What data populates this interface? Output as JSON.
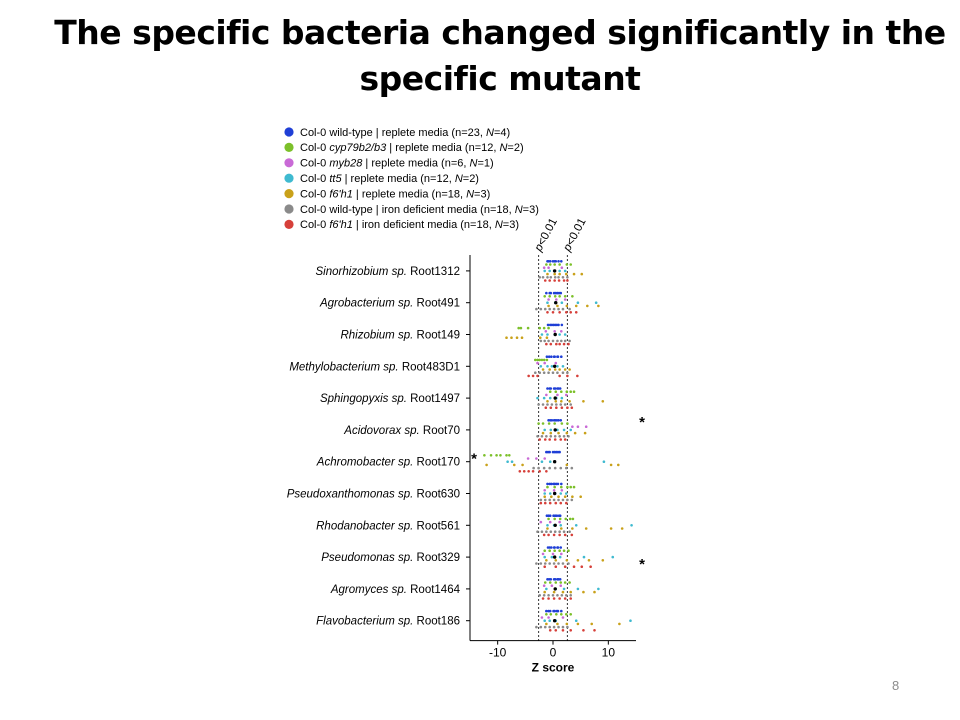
{
  "slide": {
    "title_line1": "The specific bacteria changed significantly in the",
    "title_line2": "specific mutant",
    "page_number": "8"
  },
  "chart_data": {
    "type": "scatter",
    "xlabel": "Z score",
    "xlim": [
      -15,
      15
    ],
    "xticks": [
      -10,
      0,
      10
    ],
    "threshold_lines": [
      {
        "x": -2.6,
        "label": "p<0.01"
      },
      {
        "x": 2.6,
        "label": "p<0.01"
      }
    ],
    "legend": {
      "position": "top",
      "entries": [
        {
          "parts": [
            [
              "Col-0 wild-type | replete media (n=23, ",
              false
            ],
            [
              "N",
              true
            ],
            [
              "=4)",
              false
            ]
          ],
          "color": "#1f3fd6"
        },
        {
          "parts": [
            [
              "Col-0 ",
              false
            ],
            [
              "cyp79b2/b3",
              true
            ],
            [
              " | replete media (n=12, ",
              false
            ],
            [
              "N",
              true
            ],
            [
              "=2)",
              false
            ]
          ],
          "color": "#7cc02a"
        },
        {
          "parts": [
            [
              "Col-0 ",
              false
            ],
            [
              "myb28",
              true
            ],
            [
              " | replete media (n=6, ",
              false
            ],
            [
              "N",
              true
            ],
            [
              "=1)",
              false
            ]
          ],
          "color": "#c96ad6"
        },
        {
          "parts": [
            [
              "Col-0 ",
              false
            ],
            [
              "tt5",
              true
            ],
            [
              " | replete media (n=12, ",
              false
            ],
            [
              "N",
              true
            ],
            [
              "=2)",
              false
            ]
          ],
          "color": "#3fbad0"
        },
        {
          "parts": [
            [
              "Col-0 ",
              false
            ],
            [
              "f6'h1",
              true
            ],
            [
              " | replete media (n=18, ",
              false
            ],
            [
              "N",
              true
            ],
            [
              "=3)",
              false
            ]
          ],
          "color": "#c9a11a"
        },
        {
          "parts": [
            [
              "Col-0 wild-type | iron deficient media (n=18, ",
              false
            ],
            [
              "N",
              true
            ],
            [
              "=3)",
              false
            ]
          ],
          "color": "#8a8a8a"
        },
        {
          "parts": [
            [
              "Col-0 ",
              false
            ],
            [
              "f6'h1",
              true
            ],
            [
              " | iron deficient media (n=18, ",
              false
            ],
            [
              "N",
              true
            ],
            [
              "=3)",
              false
            ]
          ],
          "color": "#d6403a"
        }
      ]
    },
    "categories": [
      {
        "genus": "Sinorhizobium sp.",
        "strain": "Root1312",
        "significant": false
      },
      {
        "genus": "Agrobacterium sp.",
        "strain": "Root491",
        "significant": false
      },
      {
        "genus": "Rhizobium sp.",
        "strain": "Root149",
        "significant": false
      },
      {
        "genus": "Methylobacterium sp.",
        "strain": "Root483D1",
        "significant": false
      },
      {
        "genus": "Sphingopyxis sp.",
        "strain": "Root1497",
        "significant": false
      },
      {
        "genus": "Acidovorax sp.",
        "strain": "Root70",
        "significant": true
      },
      {
        "genus": "Achromobacter sp.",
        "strain": "Root170",
        "significant": true
      },
      {
        "genus": "Pseudoxanthomonas sp.",
        "strain": "Root630",
        "significant": false
      },
      {
        "genus": "Rhodanobacter sp.",
        "strain": "Root561",
        "significant": false
      },
      {
        "genus": "Pseudomonas sp.",
        "strain": "Root329",
        "significant": true
      },
      {
        "genus": "Agromyces sp.",
        "strain": "Root1464",
        "significant": false
      },
      {
        "genus": "Flavobacterium sp.",
        "strain": "Root186",
        "significant": false
      }
    ],
    "significance_marker": "*",
    "series": [
      {
        "name": "Col-0 wild-type | replete media",
        "values": [
          [
            -1,
            -0.5,
            0,
            0.5,
            1,
            1.5,
            -0.8,
            0.3
          ],
          [
            -1.2,
            -0.4,
            0.2,
            0.8,
            1.4,
            -0.6,
            0.5,
            1.1
          ],
          [
            -0.9,
            -0.2,
            0.4,
            1,
            1.6,
            -0.5,
            0.1,
            0.7
          ],
          [
            -1.1,
            -0.3,
            0.3,
            0.9,
            1.5,
            -0.7,
            0.2,
            0.8
          ],
          [
            -1,
            -0.4,
            0.2,
            0.8,
            1.3,
            -0.6,
            0.4,
            1
          ],
          [
            -0.8,
            -0.2,
            0.4,
            1,
            1.4,
            -0.5,
            0.2,
            0.7
          ],
          [
            -1.2,
            -0.6,
            0,
            0.6,
            1.2,
            -0.9,
            0.3,
            0.9
          ],
          [
            -1,
            -0.3,
            0.3,
            0.9,
            1.5,
            -0.6,
            0.1,
            0.6
          ],
          [
            -1.1,
            -0.5,
            0.1,
            0.7,
            1.3,
            -0.8,
            0.4,
            1.1
          ],
          [
            -0.9,
            -0.3,
            0.3,
            0.9,
            1.4,
            -0.6,
            0.2,
            0.8
          ],
          [
            -1,
            -0.4,
            0.2,
            0.8,
            1.3,
            -0.7,
            0.4,
            1
          ],
          [
            -1.2,
            -0.5,
            0.1,
            0.7,
            1.5,
            -0.8,
            0.3,
            0.9
          ]
        ]
      },
      {
        "name": "Col-0 cyp79b2/b3 | replete media",
        "values": [
          [
            -1.2,
            -0.5,
            0.3,
            1.2,
            2.5,
            3.2
          ],
          [
            -1.5,
            -0.6,
            0.4,
            1.2,
            2.2,
            3.5
          ],
          [
            -6.2,
            -5.8,
            -4.5,
            -2.4,
            -1.6,
            -0.8
          ],
          [
            -3.2,
            -2.8,
            -2.4,
            -2,
            -1.6,
            -1.1
          ],
          [
            -0.5,
            0.5,
            1.5,
            2.5,
            3.2,
            3.8
          ],
          [
            -2.6,
            -1.8,
            -0.7,
            0.3,
            1.6,
            2.6
          ],
          [
            -12.4,
            -11.2,
            -10.2,
            -9.5,
            -8.4,
            -7.9
          ],
          [
            -1,
            0.3,
            1.5,
            2.6,
            3.2,
            3.8
          ],
          [
            -0.8,
            0.3,
            1.3,
            2.3,
            3.1,
            3.6
          ],
          [
            -1.5,
            -0.6,
            0.3,
            1.2,
            2,
            2.8
          ],
          [
            -1.4,
            -0.5,
            0.5,
            1.4,
            2.2,
            3
          ],
          [
            -1.2,
            -0.4,
            0.6,
            1.5,
            2.4,
            3.2
          ]
        ]
      },
      {
        "name": "Col-0 myb28 | replete media",
        "values": [
          [
            -1.6,
            -0.8,
            1.6
          ],
          [
            -0.8,
            0.6,
            2.2
          ],
          [
            -1.3,
            0.3,
            1.5
          ],
          [
            -2.8,
            -1.5,
            0.5
          ],
          [
            -1.2,
            0.8,
            2.4
          ],
          [
            3.5,
            4.5,
            6
          ],
          [
            -4.5,
            -3,
            -1.5
          ],
          [
            -1.5,
            0.2,
            1.6
          ],
          [
            -2.2,
            -0.5,
            1.2
          ],
          [
            -1.8,
            0,
            1.5
          ],
          [
            -1.6,
            -0.2,
            1.4
          ],
          [
            -2,
            -0.8,
            1.8
          ]
        ]
      },
      {
        "name": "Col-0 tt5 | replete media",
        "values": [
          [
            -1.5,
            -0.6,
            0.2,
            1.2,
            2.2
          ],
          [
            -1,
            0.4,
            1.6,
            4.5,
            7.8
          ],
          [
            -2,
            -1,
            0.3,
            1.2,
            2.2
          ],
          [
            -2.2,
            -1,
            -0.2,
            0.8,
            1.8
          ],
          [
            -2.8,
            -1.6,
            -0.5,
            0.6,
            1.6
          ],
          [
            -1.5,
            -0.4,
            0.8,
            2,
            3.2
          ],
          [
            -8.2,
            -7.4,
            -2,
            -0.5,
            9.2
          ],
          [
            -1.5,
            -0.5,
            0.4,
            1.4,
            2.4
          ],
          [
            -1,
            0.2,
            1.4,
            4.2,
            14.2
          ],
          [
            -1.5,
            -0.2,
            1.3,
            5.6,
            10.8
          ],
          [
            -1.2,
            0.5,
            2,
            4.5,
            8.2
          ],
          [
            -1.5,
            -0.6,
            0.5,
            4.2,
            14
          ]
        ]
      },
      {
        "name": "Col-0 f6'h1 | replete media",
        "values": [
          [
            -1,
            0.3,
            1.2,
            2.4,
            3.8,
            5.2
          ],
          [
            -0.8,
            0.8,
            2.5,
            4.2,
            6.2,
            8.2
          ],
          [
            -8.4,
            -7.5,
            -6.5,
            -5.6,
            -2.3,
            -1.1
          ],
          [
            -1.8,
            -0.6,
            0.4,
            1.2,
            2.2,
            3
          ],
          [
            -1,
            0.5,
            1.5,
            3,
            5.5,
            9
          ],
          [
            -1.8,
            -0.4,
            1,
            2.5,
            4,
            5.8
          ],
          [
            -12,
            -7,
            -5.5,
            2.5,
            10.5,
            11.8
          ],
          [
            -1.5,
            -0.3,
            1,
            2.2,
            3.5,
            5
          ],
          [
            -1,
            1.5,
            3.5,
            6,
            10.5,
            12.5
          ],
          [
            -1.2,
            0.5,
            2.5,
            4.5,
            6.5,
            9
          ],
          [
            -1.5,
            0.2,
            1.8,
            3.2,
            5.5,
            7.5
          ],
          [
            -1.2,
            0.8,
            2.5,
            4.5,
            7,
            12
          ]
        ]
      },
      {
        "name": "Col-0 wild-type | iron deficient media",
        "values": [
          [
            -2.4,
            -1.8,
            -1,
            -0.4,
            0.4,
            1,
            1.8,
            2.6
          ],
          [
            -3,
            -2.2,
            -1.4,
            -0.6,
            0.2,
            1,
            1.8,
            3
          ],
          [
            -2.2,
            -1.5,
            -0.8,
            0,
            0.8,
            1.5,
            2.2,
            3
          ],
          [
            -3.2,
            -2.4,
            -1.6,
            -0.8,
            0,
            0.8,
            1.8,
            2.6
          ],
          [
            -2.6,
            -1.8,
            -1,
            -0.2,
            0.6,
            1.4,
            2.2,
            3.2
          ],
          [
            -2.8,
            -2,
            -1.2,
            -0.4,
            0.4,
            1.2,
            2,
            2.8
          ],
          [
            -3.5,
            -2.6,
            -1.6,
            -0.6,
            0.4,
            1.4,
            2.4,
            3.4
          ],
          [
            -2.2,
            -1.4,
            -0.6,
            0.2,
            1,
            1.8,
            2.6,
            3.4
          ],
          [
            -2.8,
            -2,
            -1.2,
            -0.4,
            0.4,
            1.2,
            2,
            3
          ],
          [
            -3,
            -2.2,
            -1.4,
            -0.6,
            0.2,
            1,
            1.8,
            2.8
          ],
          [
            -2.4,
            -1.6,
            -0.8,
            0,
            0.8,
            1.6,
            2.4,
            3.2
          ],
          [
            -3,
            -2.2,
            -1.4,
            -0.6,
            0.2,
            1,
            1.8,
            2.6
          ]
        ]
      },
      {
        "name": "Col-0 f6'h1 | iron deficient media",
        "values": [
          [
            -1.4,
            -0.6,
            0.3,
            1.1,
            2,
            2.6
          ],
          [
            -1,
            0,
            1.2,
            2.4,
            3.2,
            4.2
          ],
          [
            -1.2,
            -0.4,
            0.6,
            1.2,
            2,
            2.8
          ],
          [
            -4.4,
            -3.6,
            -2.8,
            1.2,
            2.6,
            4.4
          ],
          [
            -1.3,
            -0.4,
            0.6,
            1.6,
            2.6,
            3.4
          ],
          [
            -2.4,
            -1.4,
            -0.6,
            0.4,
            1.4,
            2.2
          ],
          [
            -6,
            -5.2,
            -4.4,
            -3.6,
            -2.4,
            -1.2
          ],
          [
            -2.2,
            -1.4,
            -0.5,
            0.5,
            1.4,
            2.4
          ],
          [
            -1.6,
            -0.8,
            0.2,
            1.2,
            2.2,
            3.4
          ],
          [
            -1.5,
            0.5,
            2.2,
            3.8,
            5.2,
            6.8
          ],
          [
            -1.8,
            -0.8,
            0.2,
            1.2,
            2.2,
            3.2
          ],
          [
            -0.5,
            0.5,
            1.8,
            3.2,
            5.5,
            7.5
          ]
        ]
      }
    ]
  }
}
